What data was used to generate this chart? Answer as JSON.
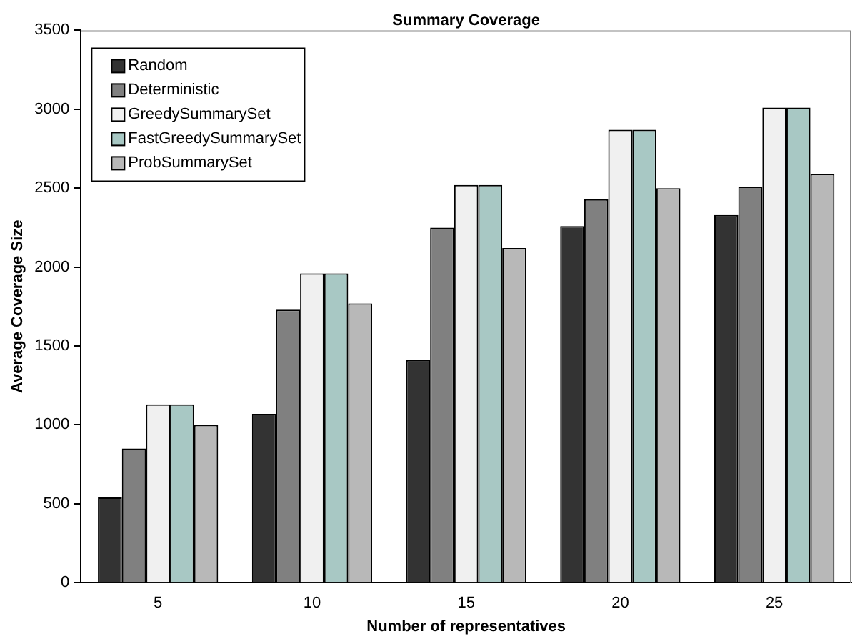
{
  "chart_data": {
    "type": "bar",
    "title": "Summary Coverage",
    "xlabel": "Number of representatives",
    "ylabel": "Average Coverage Size",
    "categories": [
      "5",
      "10",
      "15",
      "20",
      "25"
    ],
    "series": [
      {
        "name": "Random",
        "color": "#333333",
        "values": [
          540,
          1070,
          1410,
          2260,
          2330
        ]
      },
      {
        "name": "Deterministic",
        "color": "#808080",
        "values": [
          850,
          1730,
          2250,
          2430,
          2510
        ]
      },
      {
        "name": "GreedySummarySet",
        "color": "#f0f0f0",
        "values": [
          1130,
          1960,
          2520,
          2870,
          3010
        ]
      },
      {
        "name": "FastGreedySummarySet",
        "color": "#a8c8c4",
        "values": [
          1130,
          1960,
          2520,
          2870,
          3010
        ]
      },
      {
        "name": "ProbSummarySet",
        "color": "#b8b8b8",
        "values": [
          1000,
          1770,
          2120,
          2500,
          2590
        ]
      }
    ],
    "ylim": [
      0,
      3500
    ],
    "yticks": [
      0,
      500,
      1000,
      1500,
      2000,
      2500,
      3000,
      3500
    ],
    "grid": false,
    "legend": "top left"
  }
}
